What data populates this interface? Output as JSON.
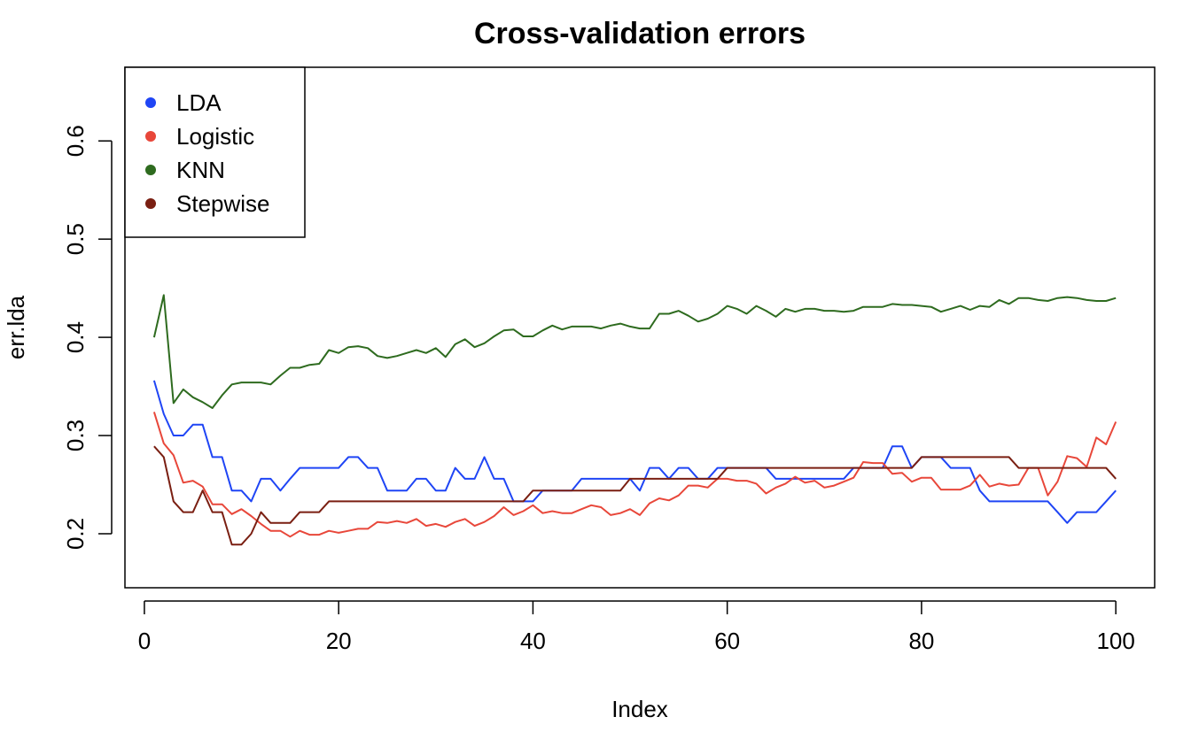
{
  "chart_data": {
    "type": "line",
    "title": "Cross-validation errors",
    "xlabel": "Index",
    "ylabel": "err.lda",
    "xlim": [
      -2,
      104
    ],
    "ylim": [
      0.145,
      0.675
    ],
    "xticks": [
      0,
      20,
      40,
      60,
      80,
      100
    ],
    "yticks": [
      0.2,
      0.3,
      0.4,
      0.5,
      0.6
    ],
    "xtick_labels": [
      "0",
      "20",
      "40",
      "60",
      "80",
      "100"
    ],
    "ytick_labels": [
      "0.2",
      "0.3",
      "0.4",
      "0.5",
      "0.6"
    ],
    "grid": false,
    "legend_position": "top-left",
    "x": [
      1,
      2,
      3,
      4,
      5,
      6,
      7,
      8,
      9,
      10,
      11,
      12,
      13,
      14,
      15,
      16,
      17,
      18,
      19,
      20,
      21,
      22,
      23,
      24,
      25,
      26,
      27,
      28,
      29,
      30,
      31,
      32,
      33,
      34,
      35,
      36,
      37,
      38,
      39,
      40,
      41,
      42,
      43,
      44,
      45,
      46,
      47,
      48,
      49,
      50,
      51,
      52,
      53,
      54,
      55,
      56,
      57,
      58,
      59,
      60,
      61,
      62,
      63,
      64,
      65,
      66,
      67,
      68,
      69,
      70,
      71,
      72,
      73,
      74,
      75,
      76,
      77,
      78,
      79,
      80,
      81,
      82,
      83,
      84,
      85,
      86,
      87,
      88,
      89,
      90,
      91,
      92,
      93,
      94,
      95,
      96,
      97,
      98,
      99,
      100
    ],
    "series": [
      {
        "name": "LDA",
        "color": "#1f45f5",
        "values": [
          0.356,
          0.322,
          0.3,
          0.3,
          0.311,
          0.311,
          0.278,
          0.278,
          0.244,
          0.244,
          0.233,
          0.256,
          0.256,
          0.244,
          0.256,
          0.267,
          0.267,
          0.267,
          0.267,
          0.267,
          0.278,
          0.278,
          0.267,
          0.267,
          0.244,
          0.244,
          0.244,
          0.256,
          0.256,
          0.244,
          0.244,
          0.267,
          0.256,
          0.256,
          0.278,
          0.256,
          0.256,
          0.233,
          0.233,
          0.233,
          0.244,
          0.244,
          0.244,
          0.244,
          0.256,
          0.256,
          0.256,
          0.256,
          0.256,
          0.256,
          0.244,
          0.267,
          0.267,
          0.256,
          0.267,
          0.267,
          0.256,
          0.256,
          0.267,
          0.267,
          0.267,
          0.267,
          0.267,
          0.267,
          0.256,
          0.256,
          0.256,
          0.256,
          0.256,
          0.256,
          0.256,
          0.256,
          0.267,
          0.267,
          0.267,
          0.267,
          0.289,
          0.289,
          0.267,
          0.278,
          0.278,
          0.278,
          0.267,
          0.267,
          0.267,
          0.244,
          0.233,
          0.233,
          0.233,
          0.233,
          0.233,
          0.233,
          0.233,
          0.222,
          0.211,
          0.222,
          0.222,
          0.222,
          0.233,
          0.244
        ]
      },
      {
        "name": "Logistic",
        "color": "#e8473a",
        "values": [
          0.324,
          0.292,
          0.28,
          0.252,
          0.254,
          0.248,
          0.23,
          0.23,
          0.22,
          0.225,
          0.218,
          0.21,
          0.203,
          0.203,
          0.197,
          0.203,
          0.199,
          0.199,
          0.203,
          0.201,
          0.203,
          0.205,
          0.205,
          0.212,
          0.211,
          0.213,
          0.211,
          0.215,
          0.208,
          0.21,
          0.207,
          0.212,
          0.215,
          0.208,
          0.212,
          0.218,
          0.227,
          0.219,
          0.223,
          0.229,
          0.221,
          0.223,
          0.221,
          0.221,
          0.225,
          0.229,
          0.227,
          0.219,
          0.221,
          0.225,
          0.219,
          0.231,
          0.236,
          0.234,
          0.239,
          0.249,
          0.249,
          0.247,
          0.256,
          0.256,
          0.254,
          0.254,
          0.251,
          0.241,
          0.247,
          0.251,
          0.258,
          0.252,
          0.254,
          0.247,
          0.249,
          0.253,
          0.257,
          0.273,
          0.272,
          0.272,
          0.261,
          0.262,
          0.253,
          0.257,
          0.257,
          0.245,
          0.245,
          0.245,
          0.249,
          0.26,
          0.248,
          0.251,
          0.249,
          0.25,
          0.267,
          0.267,
          0.239,
          0.253,
          0.279,
          0.277,
          0.268,
          0.298,
          0.291,
          0.314
        ]
      },
      {
        "name": "KNN",
        "color": "#2e6b1f",
        "values": [
          0.4,
          0.443,
          0.333,
          0.347,
          0.339,
          0.334,
          0.328,
          0.341,
          0.352,
          0.354,
          0.354,
          0.354,
          0.352,
          0.361,
          0.369,
          0.369,
          0.372,
          0.373,
          0.387,
          0.384,
          0.39,
          0.391,
          0.389,
          0.381,
          0.379,
          0.381,
          0.384,
          0.387,
          0.384,
          0.389,
          0.38,
          0.393,
          0.398,
          0.39,
          0.394,
          0.401,
          0.407,
          0.408,
          0.401,
          0.401,
          0.407,
          0.412,
          0.408,
          0.411,
          0.411,
          0.411,
          0.409,
          0.412,
          0.414,
          0.411,
          0.409,
          0.409,
          0.424,
          0.424,
          0.427,
          0.422,
          0.416,
          0.419,
          0.424,
          0.432,
          0.429,
          0.424,
          0.432,
          0.427,
          0.421,
          0.429,
          0.426,
          0.429,
          0.429,
          0.427,
          0.427,
          0.426,
          0.427,
          0.431,
          0.431,
          0.431,
          0.434,
          0.433,
          0.433,
          0.432,
          0.431,
          0.426,
          0.429,
          0.432,
          0.428,
          0.432,
          0.431,
          0.438,
          0.434,
          0.44,
          0.44,
          0.438,
          0.437,
          0.44,
          0.441,
          0.44,
          0.438,
          0.437,
          0.437,
          0.44
        ]
      },
      {
        "name": "Stepwise",
        "color": "#7a1f12",
        "values": [
          0.289,
          0.278,
          0.233,
          0.222,
          0.222,
          0.244,
          0.222,
          0.222,
          0.189,
          0.189,
          0.2,
          0.222,
          0.211,
          0.211,
          0.211,
          0.222,
          0.222,
          0.222,
          0.233,
          0.233,
          0.233,
          0.233,
          0.233,
          0.233,
          0.233,
          0.233,
          0.233,
          0.233,
          0.233,
          0.233,
          0.233,
          0.233,
          0.233,
          0.233,
          0.233,
          0.233,
          0.233,
          0.233,
          0.233,
          0.244,
          0.244,
          0.244,
          0.244,
          0.244,
          0.244,
          0.244,
          0.244,
          0.244,
          0.244,
          0.256,
          0.256,
          0.256,
          0.256,
          0.256,
          0.256,
          0.256,
          0.256,
          0.256,
          0.256,
          0.267,
          0.267,
          0.267,
          0.267,
          0.267,
          0.267,
          0.267,
          0.267,
          0.267,
          0.267,
          0.267,
          0.267,
          0.267,
          0.267,
          0.267,
          0.267,
          0.267,
          0.267,
          0.267,
          0.267,
          0.278,
          0.278,
          0.278,
          0.278,
          0.278,
          0.278,
          0.278,
          0.278,
          0.278,
          0.278,
          0.267,
          0.267,
          0.267,
          0.267,
          0.267,
          0.267,
          0.267,
          0.267,
          0.267,
          0.267,
          0.256
        ]
      }
    ]
  }
}
